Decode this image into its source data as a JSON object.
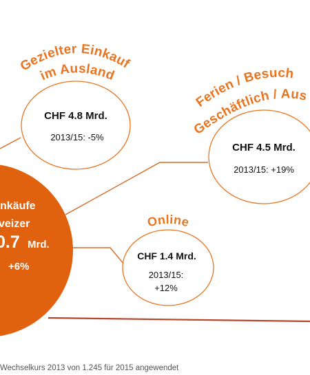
{
  "colors": {
    "accent": "#e8741f",
    "main_fill": "#e0620f",
    "line": "#d76a24",
    "text": "#111111",
    "bottom_line": "#b8432a"
  },
  "main": {
    "line1": "nkäufe",
    "line2": "veizer",
    "value_big": "0.7",
    "value_unit": "Mrd.",
    "change": "+6%"
  },
  "ausland": {
    "title_line1": "Gezielter Einkauf",
    "title_line2": "im Ausland",
    "amount": "CHF 4.8 Mrd.",
    "change": "2013/15: -5%"
  },
  "ferien": {
    "title_line1": "Ferien / Besuch",
    "title_line2": "Geschäftlich / Aus",
    "amount": "CHF 4.5 Mrd.",
    "change": "2013/15: +19%"
  },
  "online": {
    "title": "Online",
    "amount": "CHF 1.4 Mrd.",
    "change_line1": "2013/15:",
    "change_line2": "+12%"
  },
  "footnote": "Wechselkurs 2013 von 1.245 für 2015 angewendet"
}
